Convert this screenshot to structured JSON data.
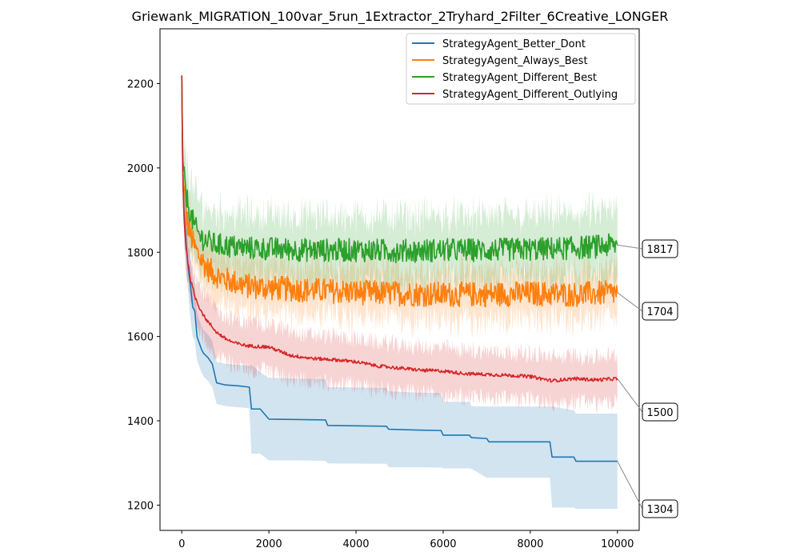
{
  "chart_data": {
    "type": "line",
    "title": "Griewank_MIGRATION_100var_5run_1Extractor_2Tryhard_2Filter_6Creative_LONGER",
    "xlabel": "",
    "ylabel": "",
    "xlim": [
      -500,
      10500
    ],
    "ylim": [
      1140,
      2330
    ],
    "xticks": [
      0,
      2000,
      4000,
      6000,
      8000,
      10000
    ],
    "yticks": [
      1200,
      1400,
      1600,
      1800,
      2000,
      2200
    ],
    "legend_position": "upper right",
    "grid": false,
    "series": [
      {
        "name": "StrategyAgent_Better_Dont",
        "color": "#1f77b4",
        "final_label": "1304",
        "x": [
          0,
          20,
          50,
          100,
          150,
          200,
          250,
          300,
          350,
          400,
          450,
          500,
          600,
          700,
          800,
          1000,
          1300,
          1550,
          1600,
          1800,
          2000,
          2700,
          3300,
          3350,
          4700,
          4750,
          5400,
          5950,
          6000,
          6600,
          6650,
          7000,
          7050,
          8450,
          8500,
          9000,
          9050,
          10000
        ],
        "values": [
          2218,
          2000,
          1900,
          1820,
          1760,
          1720,
          1670,
          1660,
          1600,
          1585,
          1570,
          1560,
          1550,
          1535,
          1490,
          1485,
          1483,
          1480,
          1428,
          1428,
          1404,
          1403,
          1402,
          1389,
          1387,
          1380,
          1378,
          1377,
          1366,
          1366,
          1360,
          1358,
          1350,
          1350,
          1314,
          1314,
          1304,
          1304
        ],
        "band_lower": [
          2200,
          1960,
          1850,
          1760,
          1700,
          1640,
          1600,
          1590,
          1545,
          1530,
          1515,
          1505,
          1495,
          1480,
          1440,
          1435,
          1432,
          1430,
          1322,
          1322,
          1306,
          1306,
          1305,
          1299,
          1298,
          1290,
          1290,
          1289,
          1287,
          1287,
          1286,
          1265,
          1265,
          1265,
          1194,
          1194,
          1191,
          1191
        ],
        "band_upper": [
          2240,
          2060,
          1960,
          1880,
          1820,
          1790,
          1740,
          1720,
          1660,
          1640,
          1625,
          1615,
          1605,
          1590,
          1540,
          1535,
          1533,
          1530,
          1533,
          1515,
          1502,
          1500,
          1499,
          1480,
          1478,
          1470,
          1467,
          1466,
          1445,
          1445,
          1435,
          1434,
          1434,
          1434,
          1434,
          1425,
          1417,
          1417
        ]
      },
      {
        "name": "StrategyAgent_Always_Best",
        "color": "#ff7f0e",
        "final_label": "1704",
        "x": [
          0,
          20,
          50,
          100,
          150,
          200,
          300,
          400,
          500,
          600,
          800,
          1000,
          1500,
          2000,
          3000,
          4000,
          5000,
          6000,
          7000,
          8000,
          9000,
          10000
        ],
        "values": [
          2218,
          2000,
          1950,
          1890,
          1860,
          1840,
          1810,
          1790,
          1775,
          1760,
          1745,
          1735,
          1720,
          1715,
          1710,
          1705,
          1702,
          1700,
          1700,
          1702,
          1700,
          1704
        ],
        "noise": 30,
        "band_halfwidth": 60
      },
      {
        "name": "StrategyAgent_Different_Best",
        "color": "#2ca02c",
        "final_label": "1817",
        "x": [
          0,
          20,
          50,
          100,
          150,
          200,
          300,
          400,
          500,
          700,
          1000,
          1500,
          2000,
          3000,
          4000,
          5000,
          6000,
          7000,
          8000,
          9000,
          10000
        ],
        "values": [
          2218,
          2030,
          1980,
          1940,
          1910,
          1890,
          1860,
          1840,
          1830,
          1820,
          1815,
          1810,
          1808,
          1805,
          1805,
          1803,
          1805,
          1805,
          1807,
          1810,
          1817
        ],
        "noise": 28,
        "band_halfwidth": 80
      },
      {
        "name": "StrategyAgent_Different_Outlying",
        "color": "#d62728",
        "final_label": "1500",
        "x": [
          0,
          20,
          50,
          100,
          150,
          200,
          300,
          400,
          500,
          600,
          800,
          1000,
          1200,
          1500,
          2000,
          2500,
          3000,
          3500,
          4000,
          4500,
          5000,
          5500,
          6000,
          6500,
          7000,
          7500,
          8000,
          8500,
          9000,
          9500,
          10000
        ],
        "values": [
          2218,
          1990,
          1880,
          1810,
          1770,
          1735,
          1695,
          1670,
          1650,
          1635,
          1610,
          1595,
          1585,
          1578,
          1575,
          1555,
          1548,
          1545,
          1540,
          1530,
          1525,
          1520,
          1518,
          1512,
          1510,
          1508,
          1505,
          1495,
          1500,
          1497,
          1500
        ],
        "noise": 4,
        "band_halfwidth": 55
      }
    ]
  }
}
